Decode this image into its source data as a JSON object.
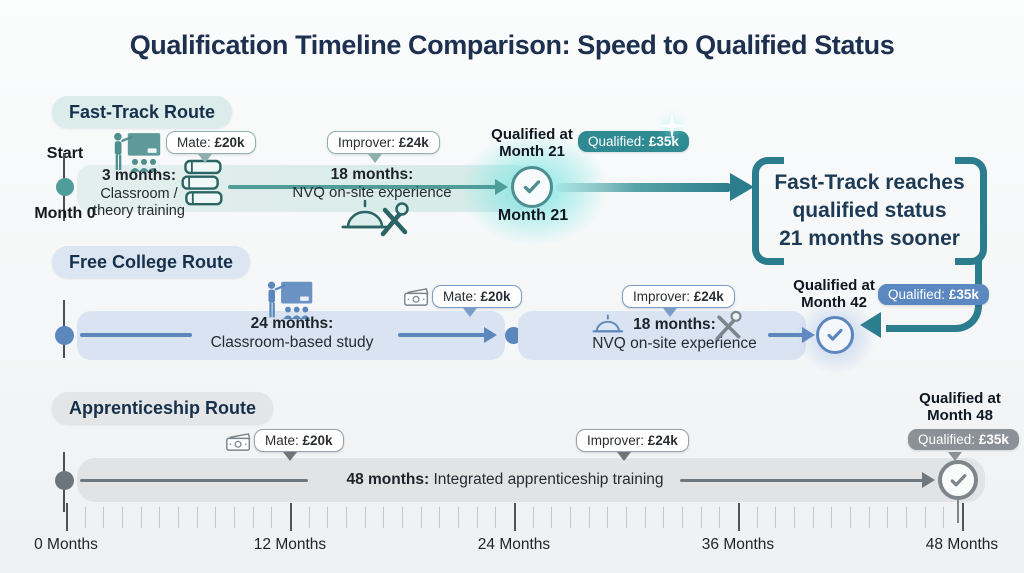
{
  "title": "Qualification Timeline Comparison: Speed to Qualified Status",
  "fast_track": {
    "route_label": "Fast-Track Route",
    "start_label": "Start",
    "start_month": "Month 0",
    "phase1_duration": "3 months:",
    "phase1_desc_line1": "Classroom /",
    "phase1_desc_line2": "theory training",
    "phase2_duration": "18 months:",
    "phase2_desc": "NVQ on-site experience",
    "mate_label": "Mate:",
    "mate_value": "£20k",
    "improver_label": "Improver:",
    "improver_value": "£24k",
    "qualified_label": "Qualified:",
    "qualified_value": "£35k",
    "qualified_at_line1": "Qualified at",
    "qualified_at_line2": "Month 21",
    "end_month_label": "Month 21"
  },
  "free_college": {
    "route_label": "Free College Route",
    "phase1_duration": "24 months:",
    "phase1_desc": "Classroom-based study",
    "phase2_duration": "18 months:",
    "phase2_desc": "NVQ on-site experience",
    "mate_label": "Mate:",
    "mate_value": "£20k",
    "improver_label": "Improver:",
    "improver_value": "£24k",
    "qualified_label": "Qualified:",
    "qualified_value": "£35k",
    "qualified_at_line1": "Qualified at",
    "qualified_at_line2": "Month 42"
  },
  "apprenticeship": {
    "route_label": "Apprenticeship Route",
    "phase1_duration": "48 months:",
    "phase1_desc": "Integrated apprenticeship training",
    "mate_label": "Mate:",
    "mate_value": "£20k",
    "improver_label": "Improver:",
    "improver_value": "£24k",
    "qualified_label": "Qualified:",
    "qualified_value": "£35k",
    "qualified_at_line1": "Qualified at",
    "qualified_at_line2": "Month 48"
  },
  "callout": {
    "line1": "Fast-Track reaches",
    "line2": "qualified status",
    "line3": "21 months sooner"
  },
  "axis": {
    "tick_labels": [
      "0 Months",
      "12 Months",
      "24 Months",
      "36 Months",
      "48 Months"
    ],
    "total_months": 48,
    "major_step": 12
  },
  "comparison": {
    "fast_track_months_to_qualified": 21,
    "free_college_months_to_qualified": 42,
    "apprenticeship_months_to_qualified": 48,
    "fast_track_advantage_months": 21
  },
  "icons": {
    "fast_track": [
      "classroom-training-icon",
      "books-icon",
      "hardhat-tools-icon",
      "check-icon",
      "sparkle-icon"
    ],
    "free_college": [
      "classroom-training-icon",
      "money-icon",
      "hardhat-icon",
      "tools-icon",
      "check-icon"
    ],
    "apprenticeship": [
      "money-icon",
      "check-icon"
    ]
  },
  "colors": {
    "title_text": "#1d3050",
    "fast_track_accent": "#4f9d9b",
    "fast_track_bar": "#dcecea",
    "fast_track_qualified_badge": "#2f8a92",
    "callout_accent": "#2b7c8c",
    "free_college_accent": "#5b87bd",
    "free_college_bar": "#d9e3f1",
    "free_college_qualified_badge": "#5c88c1",
    "apprenticeship_accent": "#70787e",
    "apprenticeship_bar": "#e2e3e5",
    "apprenticeship_qualified_badge": "#8b9197"
  }
}
